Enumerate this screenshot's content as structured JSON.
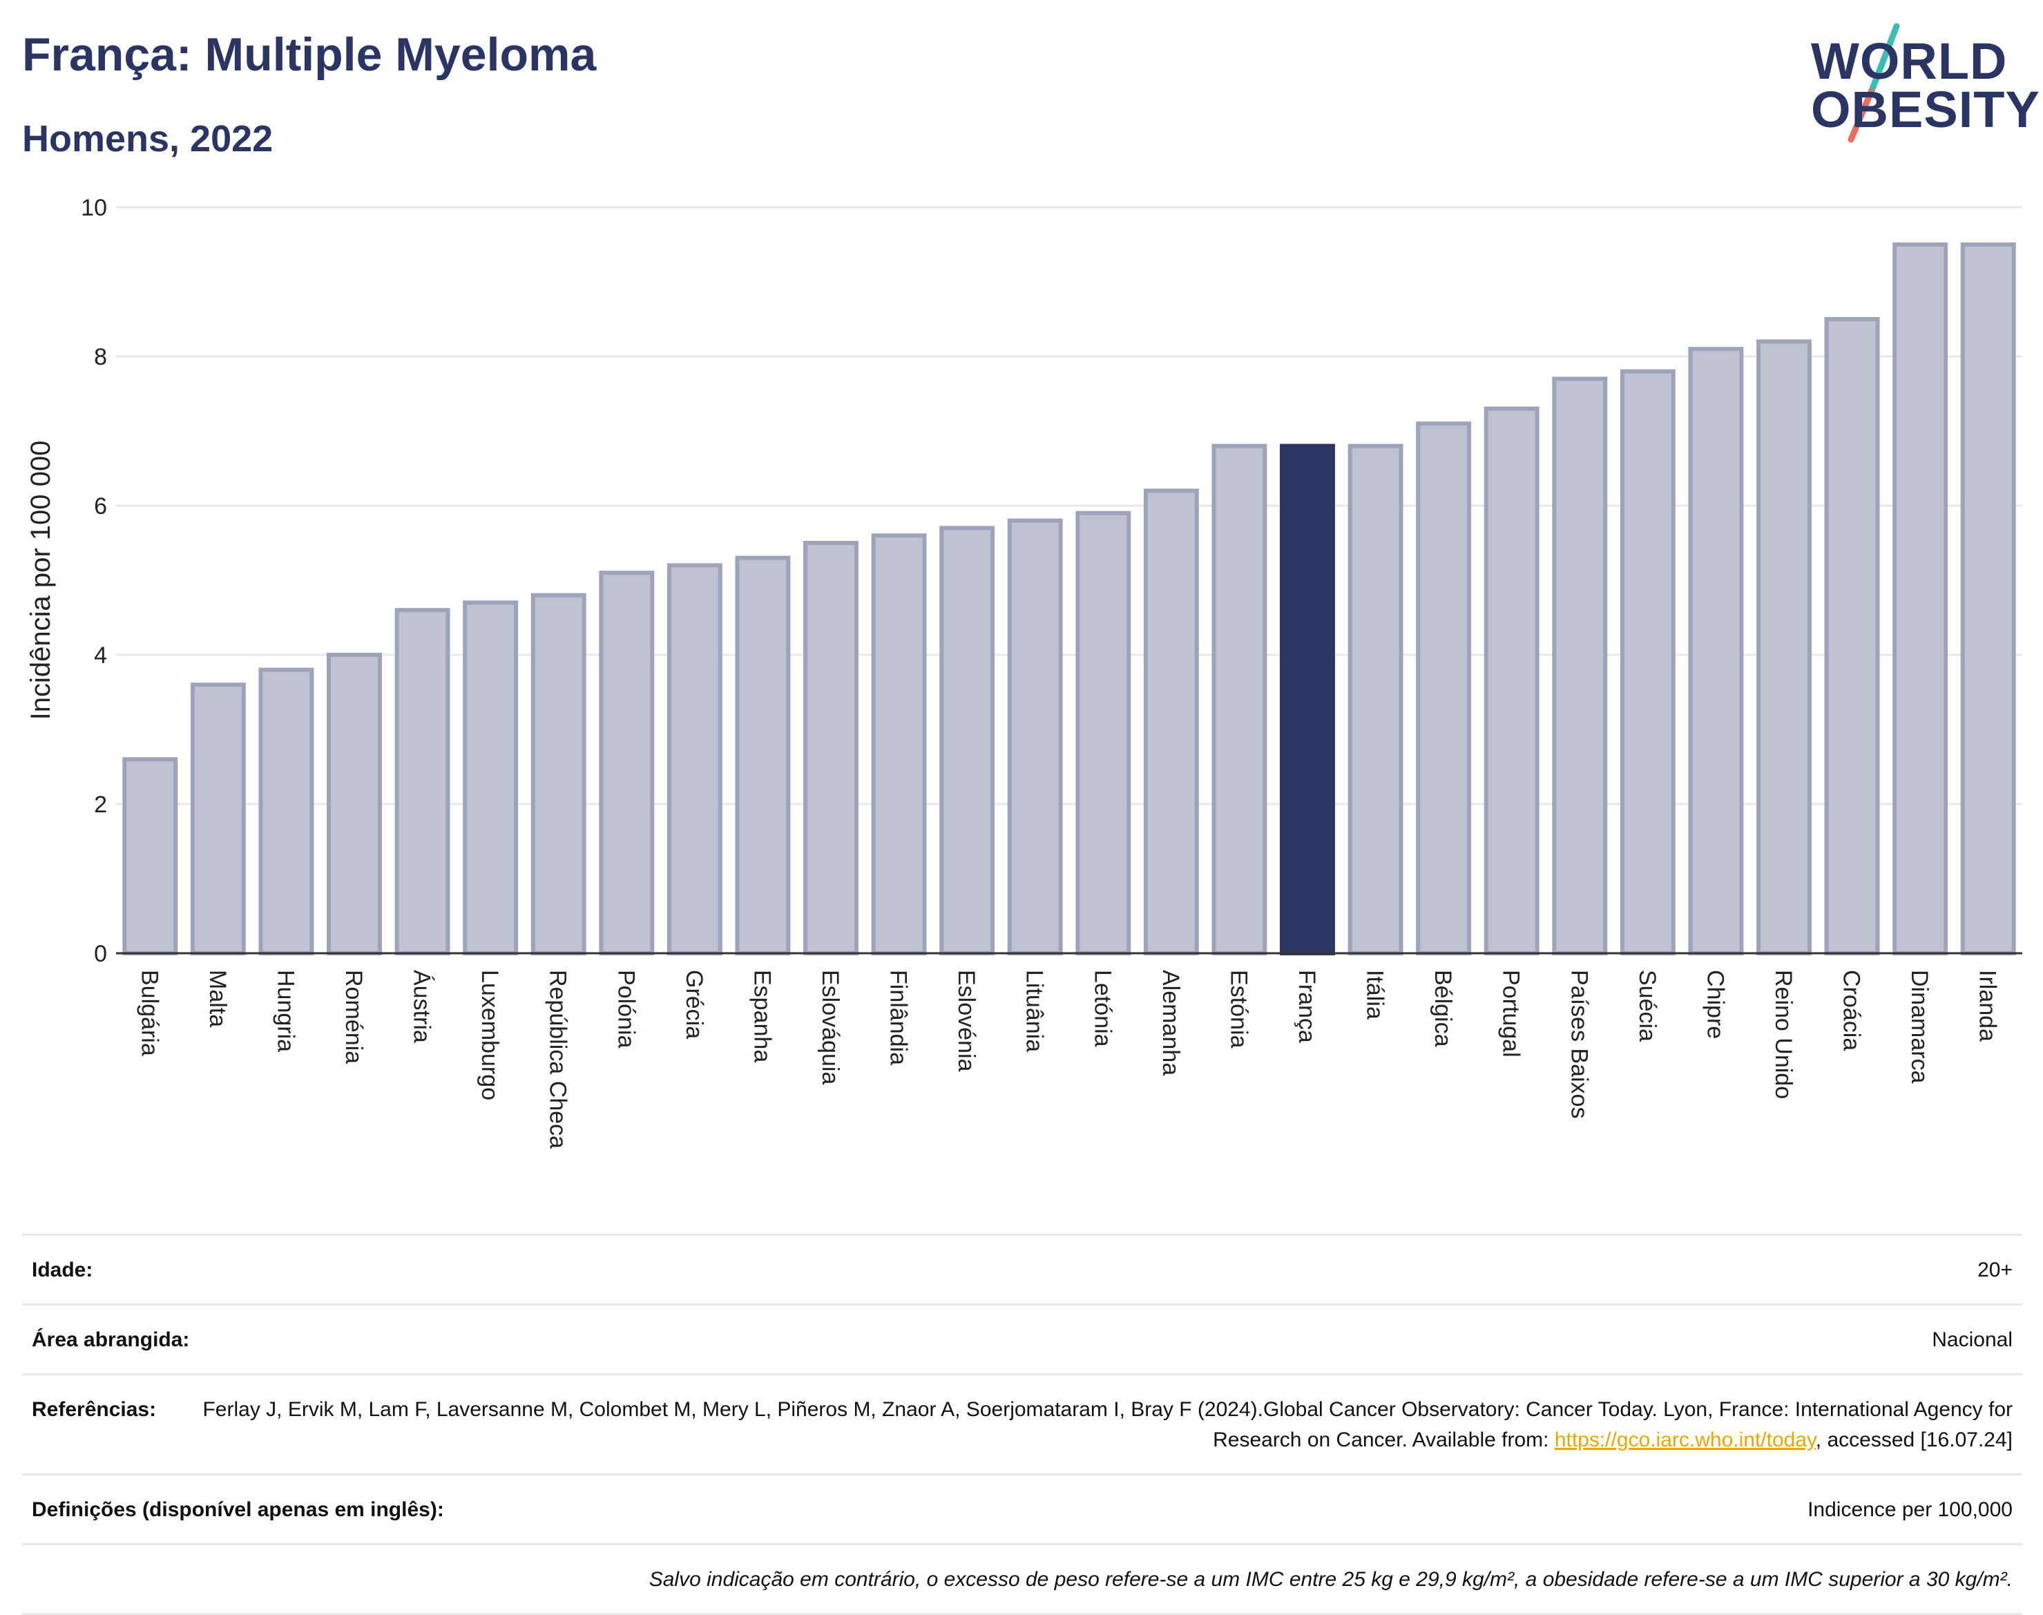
{
  "header": {
    "title": "França: Multiple Myeloma",
    "subtitle": "Homens, 2022"
  },
  "logo": {
    "line1": "WORLD",
    "line2": "OBESITY"
  },
  "colors": {
    "highlight": "#2a3563",
    "bar_fill": "#bfc2d0",
    "bar_stroke": "#9da3bb",
    "grid": "#e8e9f0",
    "logo_teal": "#3bbdb5",
    "logo_coral": "#e8705e"
  },
  "chart_data": {
    "type": "bar",
    "title": "",
    "xlabel": "",
    "ylabel": "Incidência por 100 000",
    "ylim": [
      0,
      10
    ],
    "yticks": [
      "0",
      "2",
      "4",
      "6",
      "8",
      "10"
    ],
    "grid": true,
    "highlighted_category": "França",
    "categories": [
      "Bulgária",
      "Malta",
      "Hungria",
      "Roménia",
      "Áustria",
      "Luxemburgo",
      "República Checa",
      "Polónia",
      "Grécia",
      "Espanha",
      "Eslováquia",
      "Finlândia",
      "Eslovénia",
      "Lituânia",
      "Letónia",
      "Alemanha",
      "Estónia",
      "França",
      "Itália",
      "Bélgica",
      "Portugal",
      "Países Baixos",
      "Suécia",
      "Chipre",
      "Reino Unido",
      "Croácia",
      "Dinamarca",
      "Irlanda"
    ],
    "values": [
      2.6,
      3.6,
      3.8,
      4.0,
      4.6,
      4.7,
      4.8,
      5.1,
      5.2,
      5.3,
      5.5,
      5.6,
      5.7,
      5.8,
      5.9,
      6.2,
      6.8,
      6.8,
      6.8,
      7.1,
      7.3,
      7.7,
      7.8,
      8.1,
      8.2,
      8.5,
      9.5,
      9.5
    ]
  },
  "footer": {
    "age_label": "Idade:",
    "age_value": "20+",
    "area_label": "Área abrangida:",
    "area_value": "Nacional",
    "refs_label": "Referências:",
    "refs_text": "Ferlay J, Ervik M, Lam F, Laversanne M, Colombet M, Mery L, Piñeros M, Znaor A, Soerjomataram I, Bray F (2024).Global Cancer Observatory: Cancer Today. Lyon, France: International Agency for Research on Cancer. Available from:",
    "refs_link": "https://gco.iarc.who.int/today",
    "refs_tail": ", accessed [16.07.24]",
    "defs_label": "Definições (disponível apenas em inglês):",
    "defs_value": "Indicence per 100,000",
    "note": "Salvo indicação em contrário, o excesso de peso refere-se a um IMC entre 25 kg e 29,9 kg/m², a obesidade refere-se a um IMC superior a 30 kg/m²."
  }
}
